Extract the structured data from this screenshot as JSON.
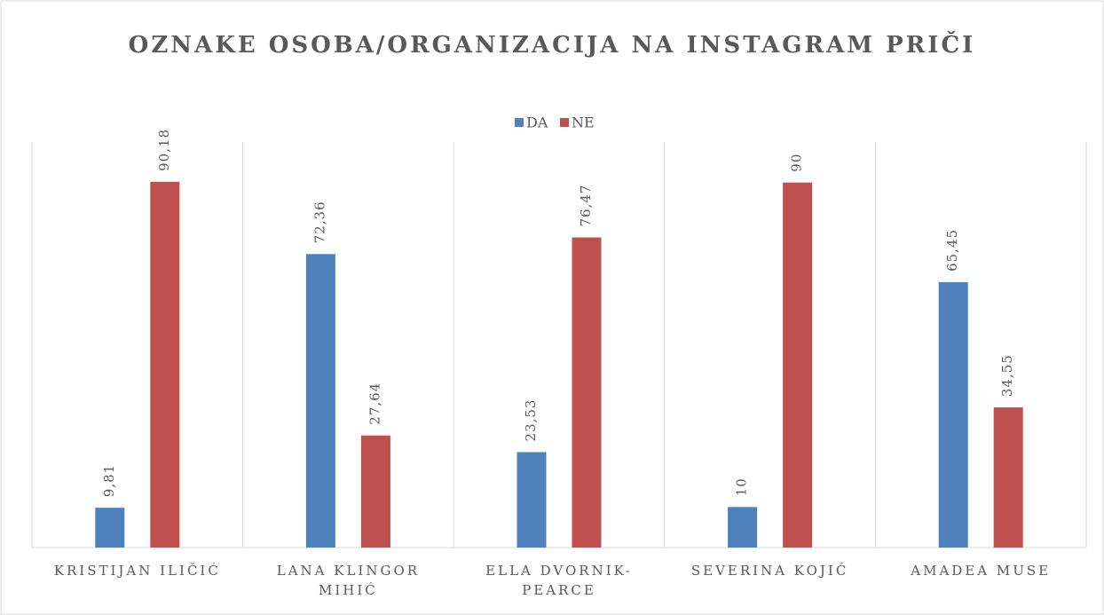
{
  "chart_data": {
    "type": "bar",
    "title": "OZNAKE OSOBA/ORGANIZACIJA NA INSTAGRAM PRIČI",
    "categories": [
      "KRISTIJAN ILIČIĆ",
      "LANA KLINGOR MIHIĆ",
      "ELLA DVORNIK-PEARCE",
      "SEVERINA KOJIĆ",
      "AMADEA MUSE"
    ],
    "series": [
      {
        "name": "DA",
        "color": "#4f81bd",
        "values": [
          9.81,
          72.36,
          23.53,
          10,
          65.45
        ],
        "value_labels": [
          "9,81",
          "72,36",
          "23,53",
          "10",
          "65,45"
        ]
      },
      {
        "name": "NE",
        "color": "#c0504d",
        "values": [
          90.18,
          27.64,
          76.47,
          90,
          34.55
        ],
        "value_labels": [
          "90,18",
          "27,64",
          "76,47",
          "90",
          "34,55"
        ]
      }
    ],
    "ylim": [
      0,
      100
    ],
    "legend": "top",
    "grid": false
  }
}
